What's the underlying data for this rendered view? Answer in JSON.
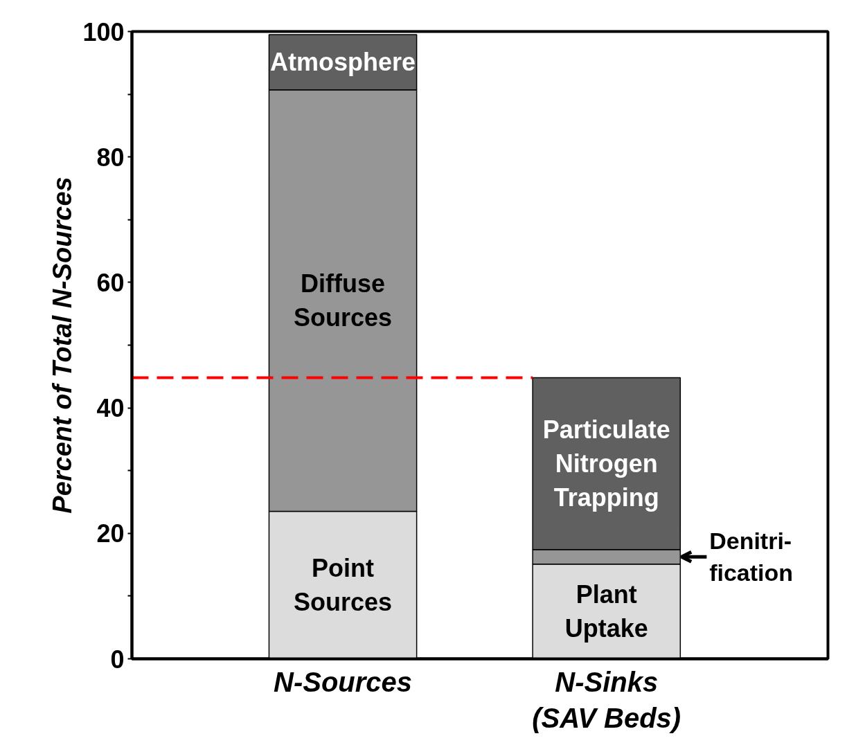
{
  "chart_data": {
    "type": "bar",
    "stacked": true,
    "ylabel": "Percent of Total N-Sources",
    "categories": [
      "N-Sources",
      "N-Sinks\n(SAV Beds)"
    ],
    "series": [
      {
        "name": "Point\nSources",
        "color": "#dcdcdc",
        "values": [
          23.5,
          null
        ]
      },
      {
        "name": "Diffuse\nSources",
        "color": "#969696",
        "values": [
          67.2,
          null
        ]
      },
      {
        "name": "Atmosphere",
        "color": "#606060",
        "values": [
          8.8,
          null
        ]
      },
      {
        "name": "Plant\nUptake",
        "color": "#dcdcdc",
        "values": [
          null,
          15.1
        ]
      },
      {
        "color": "#969696",
        "values": [
          null,
          2.3
        ]
      },
      {
        "name": "Particulate\nNitrogen\nTrapping",
        "color": "#606060",
        "values": [
          null,
          27.4
        ]
      }
    ],
    "ylim": [
      0,
      100
    ],
    "yticks": [
      0,
      {
        "value": 10,
        "label": null
      },
      20,
      {
        "value": 30,
        "label": null
      },
      40,
      {
        "value": 50,
        "label": null
      },
      60,
      {
        "value": 70,
        "label": null
      },
      80,
      {
        "value": 90,
        "label": null
      },
      100
    ],
    "ref_lines": [
      {
        "axis": "y",
        "value": 44.8,
        "color": "#ff0000",
        "line_style": "dashed"
      }
    ],
    "annotations": [
      "Denitri-\nfication"
    ],
    "grid": false
  }
}
